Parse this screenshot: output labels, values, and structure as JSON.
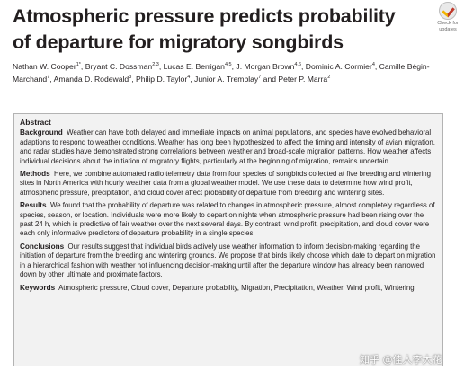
{
  "paper": {
    "title": "Atmospheric pressure predicts probability of departure for migratory songbirds",
    "badge_line1": "Check for",
    "badge_line2": "updates",
    "authors": [
      {
        "name": "Nathan W. Cooper",
        "sup": "1*",
        "sep": ", "
      },
      {
        "name": "Bryant C. Dossman",
        "sup": "2,3",
        "sep": ", "
      },
      {
        "name": "Lucas E. Berrigan",
        "sup": "4,5",
        "sep": ", "
      },
      {
        "name": "J. Morgan Brown",
        "sup": "4,6",
        "sep": ", "
      },
      {
        "name": "Dominic A. Cormier",
        "sup": "4",
        "sep": ", "
      },
      {
        "name": "Camille Bégin-Marchand",
        "sup": "7",
        "sep": ", "
      },
      {
        "name": "Amanda D. Rodewald",
        "sup": "3",
        "sep": ", "
      },
      {
        "name": "Philip D. Taylor",
        "sup": "4",
        "sep": ", "
      },
      {
        "name": "Junior A. Tremblay",
        "sup": "7",
        "sep": " and "
      },
      {
        "name": "Peter P. Marra",
        "sup": "2",
        "sep": ""
      }
    ]
  },
  "abstract": {
    "heading": "Abstract",
    "sections": [
      {
        "label": "Background",
        "text": "Weather can have both delayed and immediate impacts on animal populations, and species have evolved behavioral adaptions to respond to weather conditions. Weather has long been hypothesized to affect the timing and intensity of avian migration, and radar studies have demonstrated strong correlations between weather and broad-scale migration patterns. How weather affects individual decisions about the initiation of migratory flights, particularly at the beginning of migration, remains uncertain."
      },
      {
        "label": "Methods",
        "text": "Here, we combine automated radio telemetry data from four species of songbirds collected at five breeding and wintering sites in North America with hourly weather data from a global weather model. We use these data to determine how wind profit, atmospheric pressure, precipitation, and cloud cover affect probability of departure from breeding and wintering sites."
      },
      {
        "label": "Results",
        "text": "We found that the probability of departure was related to changes in atmospheric pressure, almost completely regardless of species, season, or location. Individuals were more likely to depart on nights when atmospheric pressure had been rising over the past 24 h, which is predictive of fair weather over the next several days. By contrast, wind profit, precipitation, and cloud cover were each only informative predictors of departure probability in a single species."
      },
      {
        "label": "Conclusions",
        "text": "Our results suggest that individual birds actively use weather information to inform decision-making regarding the initiation of departure from the breeding and wintering grounds. We propose that birds likely choose which date to depart on migration in a hierarchical fashion with weather not influencing decision-making until after the departure window has already been narrowed down by other ultimate and proximate factors."
      },
      {
        "label": "Keywords",
        "text": "Atmospheric pressure, Cloud cover, Departure probability, Migration, Precipitation, Weather, Wind profit, Wintering"
      }
    ]
  },
  "watermark": "知乎 @佳人李大花"
}
